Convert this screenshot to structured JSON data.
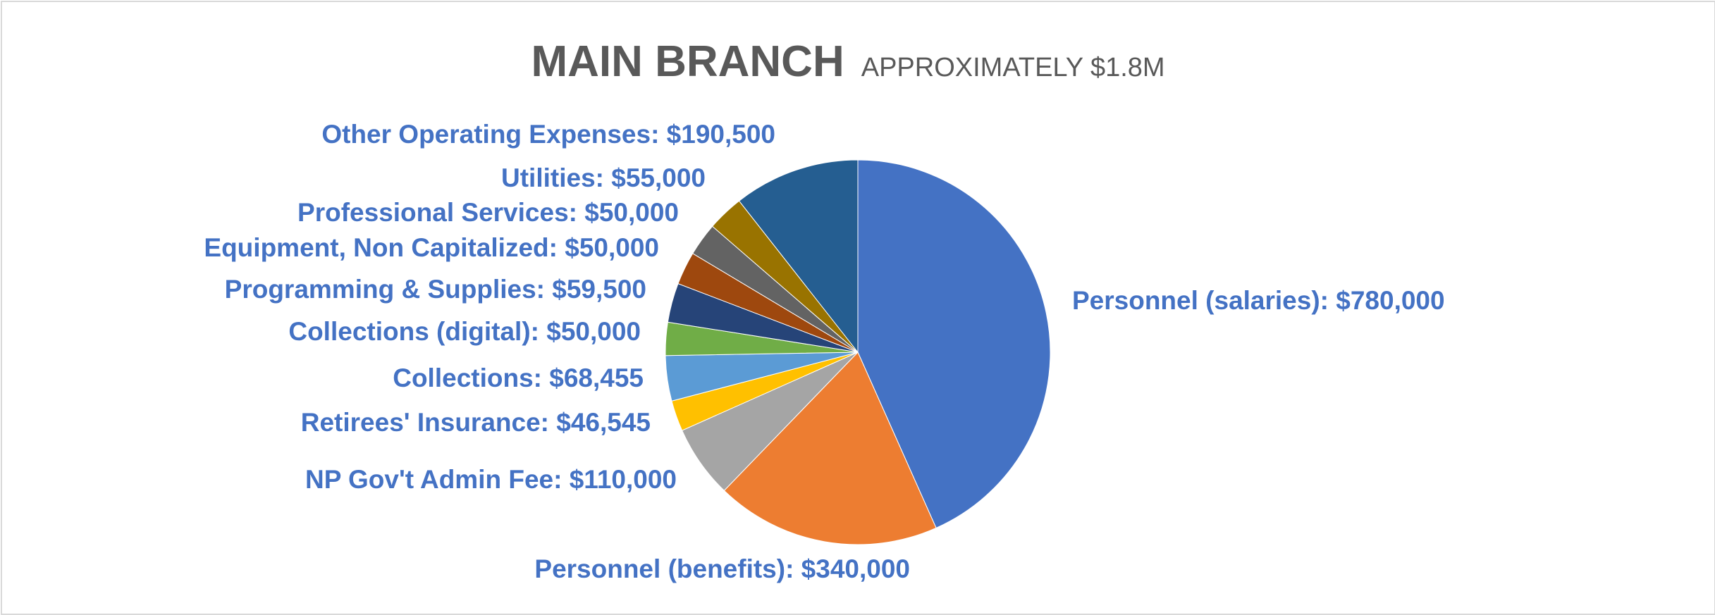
{
  "chart_data": {
    "type": "pie",
    "title": "MAIN BRANCH",
    "subtitle": "APPROXIMATELY $1.8M",
    "start_angle_deg": 0,
    "direction": "clockwise",
    "slices": [
      {
        "name": "Personnel (salaries)",
        "value": 780000,
        "label": "Personnel (salaries): $780,000",
        "color": "#4472c4"
      },
      {
        "name": "Personnel (benefits)",
        "value": 340000,
        "label": "Personnel (benefits): $340,000",
        "color": "#ed7d31"
      },
      {
        "name": "NP Gov't Admin Fee",
        "value": 110000,
        "label": "NP Gov't Admin Fee: $110,000",
        "color": "#a5a5a5"
      },
      {
        "name": "Retirees' Insurance",
        "value": 46545,
        "label": "Retirees' Insurance: $46,545",
        "color": "#ffc000"
      },
      {
        "name": "Collections",
        "value": 68455,
        "label": "Collections: $68,455",
        "color": "#5b9bd5"
      },
      {
        "name": "Collections (digital)",
        "value": 50000,
        "label": "Collections (digital): $50,000",
        "color": "#70ad47"
      },
      {
        "name": "Programming & Supplies",
        "value": 59500,
        "label": "Programming & Supplies: $59,500",
        "color": "#264478"
      },
      {
        "name": "Equipment, Non Capitalized",
        "value": 50000,
        "label": "Equipment, Non Capitalized: $50,000",
        "color": "#9e480e"
      },
      {
        "name": "Professional Services",
        "value": 50000,
        "label": "Professional Services: $50,000",
        "color": "#636363"
      },
      {
        "name": "Utilities",
        "value": 55000,
        "label": "Utilities: $55,000",
        "color": "#997300"
      },
      {
        "name": "Other Operating Expenses",
        "value": 190500,
        "label": "Other Operating Expenses: $190,500",
        "color": "#255e91"
      }
    ]
  }
}
